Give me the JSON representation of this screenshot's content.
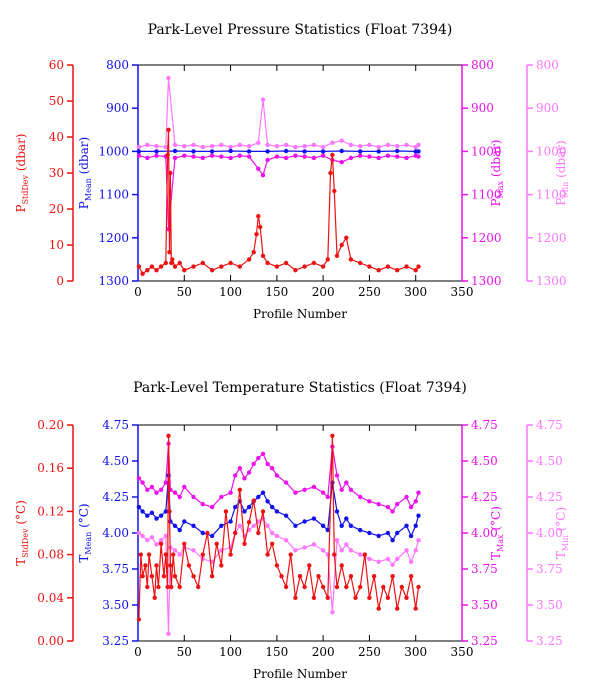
{
  "chart_data": [
    {
      "type": "scatter",
      "title": "Park-Level Pressure Statistics (Float 7394)",
      "xlabel": "Profile Number",
      "xlim": [
        0,
        350
      ],
      "xticks": [
        0,
        50,
        100,
        150,
        200,
        250,
        300,
        350
      ],
      "axes": [
        {
          "id": "stddev",
          "side": "left-outer",
          "color": "#ee1111",
          "label_main": "P",
          "label_sub": "StdDev",
          "label_unit": " (dbar)",
          "lim": [
            0,
            60
          ],
          "inverted": false,
          "ticks": [
            0,
            10,
            20,
            30,
            40,
            50,
            60
          ]
        },
        {
          "id": "mean",
          "side": "left-inner",
          "color": "#1111ee",
          "label_main": "P",
          "label_sub": "Mean",
          "label_unit": " (dbar)",
          "lim": [
            800,
            1300
          ],
          "inverted": true,
          "ticks": [
            800,
            900,
            1000,
            1100,
            1200,
            1300
          ]
        },
        {
          "id": "max",
          "side": "right-inner",
          "color": "#ee11ee",
          "label_main": "P",
          "label_sub": "Max",
          "label_unit": " (dbar)",
          "lim": [
            800,
            1300
          ],
          "inverted": true,
          "ticks": [
            800,
            900,
            1000,
            1100,
            1200,
            1300
          ]
        },
        {
          "id": "min",
          "side": "right-outer",
          "color": "#ff77ff",
          "label_main": "P",
          "label_sub": "Min",
          "label_unit": " (dbar)",
          "lim": [
            800,
            1300
          ],
          "inverted": true,
          "ticks": [
            800,
            900,
            1000,
            1100,
            1200,
            1300
          ]
        }
      ],
      "series": [
        {
          "axis": "min",
          "color": "#ff77ff",
          "x": [
            1,
            10,
            20,
            30,
            33,
            40,
            50,
            60,
            70,
            80,
            90,
            100,
            110,
            120,
            130,
            135,
            140,
            150,
            160,
            170,
            180,
            190,
            200,
            210,
            220,
            230,
            240,
            250,
            260,
            270,
            280,
            290,
            300,
            303
          ],
          "y": [
            990,
            985,
            988,
            990,
            830,
            985,
            988,
            985,
            990,
            988,
            985,
            990,
            985,
            988,
            980,
            880,
            985,
            988,
            985,
            990,
            988,
            985,
            990,
            980,
            975,
            985,
            988,
            985,
            990,
            985,
            988,
            985,
            990,
            985
          ]
        },
        {
          "axis": "max",
          "color": "#ee11ee",
          "x": [
            1,
            10,
            20,
            30,
            33,
            40,
            50,
            60,
            70,
            80,
            90,
            100,
            110,
            120,
            130,
            135,
            140,
            150,
            160,
            170,
            180,
            190,
            200,
            210,
            220,
            230,
            240,
            250,
            260,
            270,
            280,
            290,
            300,
            303
          ],
          "y": [
            1010,
            1015,
            1010,
            1012,
            1180,
            1015,
            1010,
            1012,
            1015,
            1010,
            1012,
            1015,
            1010,
            1012,
            1040,
            1055,
            1020,
            1012,
            1015,
            1010,
            1012,
            1015,
            1010,
            1020,
            1025,
            1015,
            1010,
            1012,
            1015,
            1010,
            1012,
            1015,
            1010,
            1012
          ]
        },
        {
          "axis": "mean",
          "color": "#1111ee",
          "x": [
            1,
            20,
            40,
            60,
            80,
            100,
            120,
            140,
            160,
            180,
            200,
            220,
            240,
            260,
            280,
            300,
            303
          ],
          "y": [
            1000,
            1000,
            999,
            1000,
            1000,
            999,
            1000,
            1000,
            999,
            1000,
            1000,
            999,
            1000,
            1000,
            999,
            1000,
            1000
          ]
        },
        {
          "axis": "stddev",
          "color": "#ee1111",
          "x": [
            1,
            5,
            10,
            15,
            20,
            25,
            30,
            32,
            33,
            34,
            35,
            36,
            37,
            40,
            45,
            50,
            60,
            70,
            80,
            90,
            100,
            110,
            120,
            125,
            128,
            130,
            132,
            135,
            140,
            150,
            160,
            170,
            180,
            190,
            200,
            205,
            208,
            210,
            212,
            215,
            220,
            225,
            230,
            240,
            250,
            260,
            270,
            280,
            290,
            300,
            303
          ],
          "y": [
            4,
            2,
            3,
            4,
            3,
            4,
            5,
            35,
            42,
            8,
            30,
            5,
            6,
            4,
            5,
            3,
            4,
            5,
            3,
            4,
            5,
            4,
            6,
            8,
            13,
            18,
            15,
            7,
            5,
            4,
            5,
            3,
            4,
            5,
            4,
            6,
            30,
            35,
            25,
            7,
            10,
            12,
            6,
            5,
            4,
            3,
            4,
            3,
            4,
            3,
            4
          ]
        }
      ]
    },
    {
      "type": "scatter",
      "title": "Park-Level Temperature Statistics (Float 7394)",
      "xlabel": "Profile Number",
      "xlim": [
        0,
        350
      ],
      "xticks": [
        0,
        50,
        100,
        150,
        200,
        250,
        300,
        350
      ],
      "axes": [
        {
          "id": "stddev",
          "side": "left-outer",
          "color": "#ee1111",
          "label_main": "T",
          "label_sub": "StdDev",
          "label_unit": " (°C)",
          "lim": [
            0,
            0.2
          ],
          "inverted": false,
          "ticks": [
            "0.00",
            "0.04",
            "0.08",
            "0.12",
            "0.16",
            "0.20"
          ]
        },
        {
          "id": "mean",
          "side": "left-inner",
          "color": "#1111ee",
          "label_main": "T",
          "label_sub": "Mean",
          "label_unit": " (°C)",
          "lim": [
            3.25,
            4.75
          ],
          "inverted": false,
          "ticks": [
            "3.25",
            "3.50",
            "3.75",
            "4.00",
            "4.25",
            "4.50",
            "4.75"
          ]
        },
        {
          "id": "max",
          "side": "right-inner",
          "color": "#ee11ee",
          "label_main": "T",
          "label_sub": "Max",
          "label_unit": " (°C)",
          "lim": [
            3.25,
            4.75
          ],
          "inverted": false,
          "ticks": [
            "3.25",
            "3.50",
            "3.75",
            "4.00",
            "4.25",
            "4.50",
            "4.75"
          ]
        },
        {
          "id": "min",
          "side": "right-outer",
          "color": "#ff77ff",
          "label_main": "T",
          "label_sub": "Min",
          "label_unit": " (°C)",
          "lim": [
            3.25,
            4.75
          ],
          "inverted": false,
          "ticks": [
            "3.25",
            "3.50",
            "3.75",
            "4.00",
            "4.25",
            "4.50",
            "4.75"
          ]
        }
      ],
      "series": [
        {
          "axis": "max",
          "color": "#ee11ee",
          "x": [
            1,
            5,
            10,
            15,
            20,
            25,
            30,
            33,
            35,
            40,
            45,
            50,
            60,
            70,
            80,
            90,
            100,
            105,
            110,
            115,
            120,
            125,
            130,
            135,
            140,
            145,
            150,
            160,
            170,
            180,
            190,
            200,
            205,
            210,
            215,
            220,
            225,
            230,
            240,
            250,
            260,
            270,
            275,
            280,
            290,
            295,
            300,
            303
          ],
          "y": [
            4.38,
            4.35,
            4.3,
            4.32,
            4.28,
            4.3,
            4.35,
            4.62,
            4.3,
            4.28,
            4.25,
            4.32,
            4.25,
            4.2,
            4.18,
            4.25,
            4.28,
            4.4,
            4.45,
            4.38,
            4.42,
            4.48,
            4.52,
            4.55,
            4.48,
            4.45,
            4.4,
            4.35,
            4.28,
            4.3,
            4.32,
            4.28,
            4.25,
            4.6,
            4.4,
            4.3,
            4.35,
            4.3,
            4.25,
            4.22,
            4.2,
            4.18,
            4.15,
            4.2,
            4.25,
            4.18,
            4.22,
            4.28
          ]
        },
        {
          "axis": "mean",
          "color": "#1111ee",
          "x": [
            1,
            5,
            10,
            15,
            20,
            25,
            30,
            33,
            35,
            40,
            45,
            50,
            60,
            70,
            80,
            90,
            100,
            105,
            110,
            115,
            120,
            125,
            130,
            135,
            140,
            145,
            150,
            160,
            170,
            180,
            190,
            200,
            205,
            210,
            215,
            220,
            225,
            230,
            240,
            250,
            260,
            270,
            275,
            280,
            290,
            295,
            300,
            303
          ],
          "y": [
            4.18,
            4.15,
            4.12,
            4.14,
            4.1,
            4.12,
            4.15,
            4.4,
            4.08,
            4.05,
            4.02,
            4.08,
            4.05,
            4.0,
            3.98,
            4.05,
            4.08,
            4.18,
            4.22,
            4.15,
            4.18,
            4.22,
            4.25,
            4.28,
            4.22,
            4.18,
            4.15,
            4.12,
            4.05,
            4.08,
            4.1,
            4.05,
            4.02,
            4.35,
            4.15,
            4.05,
            4.1,
            4.05,
            4.02,
            4.0,
            3.98,
            4.0,
            3.95,
            4.0,
            4.05,
            3.98,
            4.05,
            4.12
          ]
        },
        {
          "axis": "min",
          "color": "#ff77ff",
          "x": [
            1,
            5,
            10,
            15,
            20,
            25,
            30,
            33,
            35,
            40,
            45,
            50,
            60,
            70,
            80,
            90,
            100,
            105,
            110,
            115,
            120,
            125,
            130,
            135,
            140,
            145,
            150,
            160,
            170,
            180,
            190,
            200,
            205,
            210,
            215,
            220,
            225,
            230,
            240,
            250,
            260,
            270,
            275,
            280,
            290,
            295,
            300,
            303
          ],
          "y": [
            4.0,
            3.98,
            3.95,
            3.97,
            3.92,
            3.95,
            3.98,
            3.3,
            3.9,
            3.88,
            3.85,
            3.9,
            3.88,
            3.82,
            3.8,
            3.88,
            3.9,
            4.0,
            4.05,
            3.98,
            4.02,
            4.05,
            4.08,
            4.1,
            4.05,
            4.0,
            3.98,
            3.95,
            3.88,
            3.9,
            3.92,
            3.88,
            3.85,
            3.45,
            3.95,
            3.88,
            3.92,
            3.88,
            3.85,
            3.82,
            3.8,
            3.82,
            3.78,
            3.82,
            3.88,
            3.8,
            3.88,
            3.95
          ]
        },
        {
          "axis": "stddev",
          "color": "#ee1111",
          "x": [
            1,
            3,
            5,
            8,
            10,
            12,
            15,
            18,
            20,
            22,
            25,
            28,
            30,
            32,
            33,
            34,
            35,
            36,
            38,
            40,
            45,
            50,
            55,
            60,
            65,
            70,
            75,
            80,
            85,
            90,
            95,
            100,
            105,
            110,
            115,
            120,
            125,
            130,
            135,
            140,
            145,
            150,
            155,
            160,
            165,
            170,
            175,
            180,
            185,
            190,
            195,
            200,
            205,
            210,
            212,
            215,
            220,
            225,
            230,
            235,
            240,
            245,
            250,
            255,
            260,
            265,
            270,
            275,
            280,
            285,
            290,
            295,
            300,
            303
          ],
          "y": [
            0.02,
            0.08,
            0.06,
            0.07,
            0.05,
            0.08,
            0.06,
            0.04,
            0.07,
            0.05,
            0.09,
            0.06,
            0.08,
            0.05,
            0.19,
            0.12,
            0.07,
            0.05,
            0.08,
            0.06,
            0.05,
            0.09,
            0.07,
            0.06,
            0.05,
            0.08,
            0.1,
            0.06,
            0.09,
            0.07,
            0.12,
            0.08,
            0.1,
            0.14,
            0.09,
            0.11,
            0.13,
            0.1,
            0.12,
            0.08,
            0.09,
            0.07,
            0.06,
            0.05,
            0.08,
            0.04,
            0.06,
            0.05,
            0.07,
            0.04,
            0.06,
            0.05,
            0.04,
            0.19,
            0.08,
            0.05,
            0.07,
            0.05,
            0.06,
            0.04,
            0.05,
            0.08,
            0.04,
            0.06,
            0.03,
            0.05,
            0.04,
            0.06,
            0.03,
            0.05,
            0.04,
            0.06,
            0.03,
            0.05
          ]
        }
      ]
    }
  ]
}
